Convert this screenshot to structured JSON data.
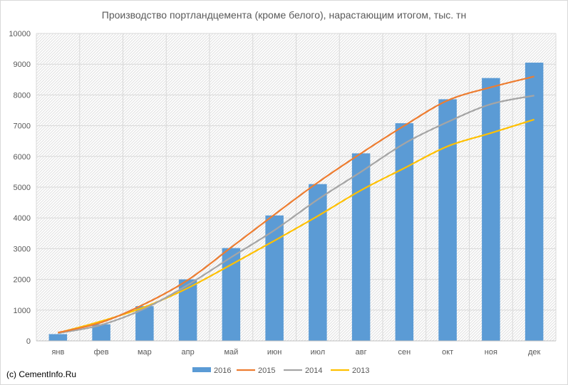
{
  "chart_data": {
    "type": "bar",
    "title": "Производство портландцемента (кроме белого), нарастающим итогом, тыс. тн",
    "xlabel": "",
    "ylabel": "",
    "ylim": [
      0,
      10000
    ],
    "yticks": [
      0,
      1000,
      2000,
      3000,
      4000,
      5000,
      6000,
      7000,
      8000,
      9000,
      10000
    ],
    "categories": [
      "янв",
      "фев",
      "мар",
      "апр",
      "май",
      "июн",
      "июл",
      "авг",
      "сен",
      "окт",
      "ноя",
      "дек"
    ],
    "grid": true,
    "legend_position": "bottom",
    "series": [
      {
        "name": "2016",
        "type": "bar",
        "color": "#5b9bd5",
        "values": [
          220,
          540,
          1130,
          2000,
          3020,
          4080,
          5100,
          6100,
          7080,
          7860,
          8550,
          9050
        ]
      },
      {
        "name": "2015",
        "type": "line",
        "color": "#ed7d31",
        "values": [
          270,
          600,
          1200,
          1980,
          3040,
          4110,
          5150,
          6100,
          7000,
          7820,
          8250,
          8600
        ]
      },
      {
        "name": "2014",
        "type": "line",
        "color": "#a5a5a5",
        "values": [
          250,
          520,
          1050,
          1820,
          2720,
          3600,
          4600,
          5500,
          6420,
          7120,
          7700,
          7980
        ]
      },
      {
        "name": "2013",
        "type": "line",
        "color": "#ffc000",
        "values": [
          260,
          640,
          1100,
          1720,
          2480,
          3260,
          4060,
          4900,
          5620,
          6330,
          6760,
          7200
        ]
      }
    ]
  },
  "footer": {
    "copyright": "(c) CementInfo.Ru"
  }
}
